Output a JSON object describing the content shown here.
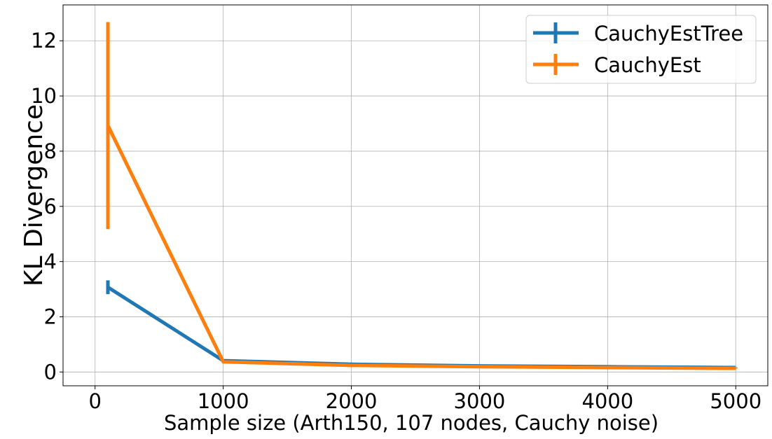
{
  "chart_data": {
    "type": "line",
    "title": "",
    "xlabel": "Sample size (Arth150, 107 nodes, Cauchy noise)",
    "ylabel": "KL Divergence",
    "xlim": [
      -250,
      5250
    ],
    "ylim": [
      -0.5,
      13.3
    ],
    "xticks": [
      0,
      1000,
      2000,
      3000,
      4000,
      5000
    ],
    "yticks": [
      0,
      2,
      4,
      6,
      8,
      10,
      12
    ],
    "grid": true,
    "legend_position": "top-right",
    "series": [
      {
        "name": "CauchyEstTree",
        "color": "#1f77b4",
        "x": [
          100,
          1000,
          2000,
          3000,
          4000,
          5000
        ],
        "y": [
          3.07,
          0.41,
          0.28,
          0.22,
          0.19,
          0.16
        ],
        "err": [
          0.25,
          0.02,
          0.02,
          0.01,
          0.01,
          0.01
        ]
      },
      {
        "name": "CauchyEst",
        "color": "#ff7f0e",
        "x": [
          100,
          1000,
          2000,
          3000,
          4000,
          5000
        ],
        "y": [
          8.93,
          0.37,
          0.24,
          0.19,
          0.16,
          0.13
        ],
        "err": [
          3.75,
          0.02,
          0.02,
          0.01,
          0.01,
          0.01
        ]
      }
    ]
  }
}
